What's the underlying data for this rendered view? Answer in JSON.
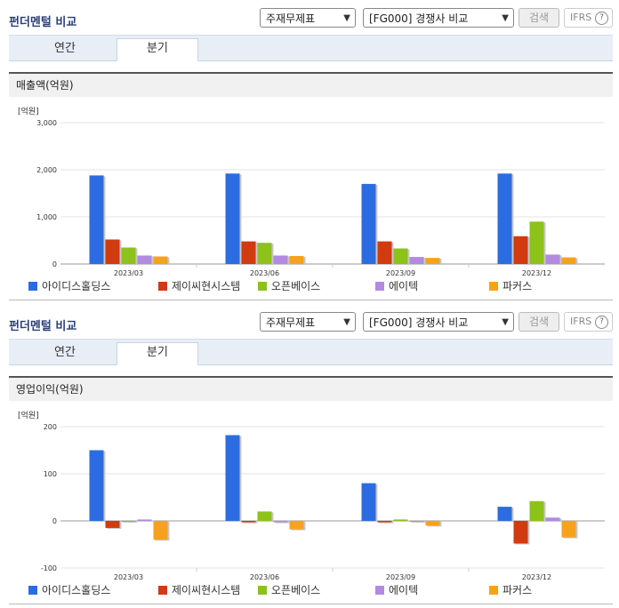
{
  "sections": [
    {
      "title": "펀더멘털 비교",
      "select1": "주재무제표",
      "select2": "[FG000] 경쟁사 비교",
      "search_label": "검색",
      "ifrs_label": "IFRS",
      "tabs": [
        "연간",
        "분기"
      ],
      "active_tab": "분기",
      "chart_title": "매출액(억원)",
      "unit": "[억원]"
    },
    {
      "title": "펀더멘털 비교",
      "select1": "주재무제표",
      "select2": "[FG000] 경쟁사 비교",
      "search_label": "검색",
      "ifrs_label": "IFRS",
      "tabs": [
        "연간",
        "분기"
      ],
      "active_tab": "분기",
      "chart_title": "영업이익(억원)",
      "unit": "[억원]"
    }
  ],
  "chart_data": [
    {
      "type": "bar",
      "title": "매출액(억원)",
      "ylabel": "[억원]",
      "categories": [
        "2023/03",
        "2023/06",
        "2023/09",
        "2023/12"
      ],
      "ylim": [
        0,
        3000
      ],
      "yticks": [
        "0",
        "1,000",
        "2,000",
        "3,000"
      ],
      "yticks_values": [
        0,
        1000,
        2000,
        3000
      ],
      "series": [
        {
          "name": "아이디스홀딩스",
          "color": "#2b6de0",
          "values": [
            1880,
            1920,
            1700,
            1920
          ]
        },
        {
          "name": "제이씨현시스템",
          "color": "#d23a10",
          "values": [
            520,
            480,
            480,
            590
          ]
        },
        {
          "name": "오픈베이스",
          "color": "#8cc21a",
          "values": [
            350,
            450,
            330,
            900
          ]
        },
        {
          "name": "에이텍",
          "color": "#b28ae0",
          "values": [
            180,
            180,
            150,
            200
          ]
        },
        {
          "name": "파커스",
          "color": "#f7a21c",
          "values": [
            160,
            170,
            130,
            140
          ]
        }
      ]
    },
    {
      "type": "bar",
      "title": "영업이익(억원)",
      "ylabel": "[억원]",
      "categories": [
        "2023/03",
        "2023/06",
        "2023/09",
        "2023/12"
      ],
      "ylim": [
        -100,
        200
      ],
      "yticks": [
        "-100",
        "0",
        "100",
        "200"
      ],
      "yticks_values": [
        -100,
        0,
        100,
        200
      ],
      "series": [
        {
          "name": "아이디스홀딩스",
          "color": "#2b6de0",
          "values": [
            150,
            182,
            80,
            30
          ]
        },
        {
          "name": "제이씨현시스템",
          "color": "#d23a10",
          "values": [
            -15,
            -3,
            -3,
            -48
          ]
        },
        {
          "name": "오픈베이스",
          "color": "#8cc21a",
          "values": [
            0,
            20,
            3,
            42
          ]
        },
        {
          "name": "에이텍",
          "color": "#b28ae0",
          "values": [
            3,
            -3,
            0,
            7
          ]
        },
        {
          "name": "파커스",
          "color": "#f7a21c",
          "values": [
            -40,
            -18,
            -10,
            -35
          ]
        }
      ]
    }
  ]
}
